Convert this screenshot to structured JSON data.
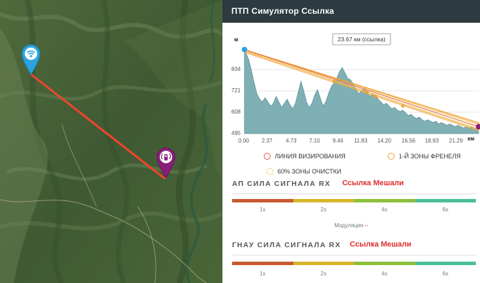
{
  "panel": {
    "title": "ПТП Симулятор Ссылка"
  },
  "profile": {
    "distance_label": "23.67 км (ссылка)",
    "y_unit": "м",
    "x_unit": "км",
    "y_ticks": [
      "834",
      "721",
      "608",
      "495"
    ],
    "x_ticks": [
      "0.00",
      "2.37",
      "4.73",
      "7.10",
      "9.46",
      "11.83",
      "14.20",
      "16.56",
      "18.93",
      "21.29"
    ],
    "terrain_color": "#7fb0b5",
    "los_color": "#e4574a",
    "fresnel_color": "#f0a330"
  },
  "legend": {
    "los": "ЛИНИЯ ВИЗИРОВАНИЯ",
    "fresnel": "1-Й ЗОНЫ ФРЕНЕЛЯ",
    "clearance": "60% ЗОНЫ ОЧИСТКИ"
  },
  "ap_signal": {
    "title": "АП СИЛА СИГНАЛА RX",
    "status": "Ссылка Мешали",
    "scale": [
      "1x",
      "2x",
      "4x",
      "6x"
    ]
  },
  "modulation": {
    "label": "Модуляция",
    "value": "--"
  },
  "sta_signal": {
    "title": "ГНАУ СИЛА СИГНАЛА RX",
    "status": "Ссылка Мешали",
    "scale": [
      "1x",
      "2x",
      "4x",
      "6x"
    ]
  },
  "map": {
    "link_color": "#f0452c",
    "ap_pin_color": "#2aa3e0",
    "sta_pin_color": "#8a1f7a",
    "ap_icon": "wifi-icon",
    "sta_icon": "radio-tower-icon"
  }
}
